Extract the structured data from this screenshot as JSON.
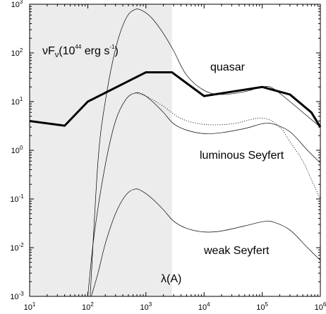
{
  "chart_data": {
    "type": "line",
    "x_scale": "log",
    "y_scale": "log",
    "xlim": [
      10,
      1000000
    ],
    "ylim": [
      0.001,
      1000
    ],
    "shaded_region_x": [
      10,
      2800
    ],
    "ylabel_annotation": {
      "nu": "ν",
      "F": "F",
      "sub": "ν",
      "rest1": "(10",
      "exp1": "44",
      "rest2": " erg s",
      "exp2": "-1",
      "rest3": ")"
    },
    "xlabel": "λ(A)",
    "x_ticks": [
      {
        "value": 10,
        "base": "10",
        "exp": "1"
      },
      {
        "value": 100,
        "base": "10",
        "exp": "2"
      },
      {
        "value": 1000,
        "base": "10",
        "exp": "3"
      },
      {
        "value": 10000,
        "base": "10",
        "exp": "4"
      },
      {
        "value": 100000,
        "base": "10",
        "exp": "5"
      },
      {
        "value": 1000000,
        "base": "10",
        "exp": "6"
      }
    ],
    "y_ticks": [
      {
        "value": 0.001,
        "base": "10",
        "exp": "-3"
      },
      {
        "value": 0.01,
        "base": "10",
        "exp": "-2"
      },
      {
        "value": 0.1,
        "base": "10",
        "exp": "-1"
      },
      {
        "value": 1,
        "base": "10",
        "exp": "0"
      },
      {
        "value": 10,
        "base": "10",
        "exp": "1"
      },
      {
        "value": 100,
        "base": "10",
        "exp": "2"
      },
      {
        "value": 1000,
        "base": "10",
        "exp": "3"
      }
    ],
    "series": [
      {
        "label": "quasar",
        "style": "thin",
        "x": [
          110,
          150,
          200,
          300,
          450,
          650,
          900,
          1300,
          2000,
          3000,
          5000,
          10000,
          20000,
          50000,
          100000,
          150000,
          300000,
          600000,
          1000000
        ],
        "y": [
          0.001,
          0.6,
          10,
          120,
          500,
          780,
          720,
          500,
          250,
          110,
          35,
          17,
          14,
          16,
          20,
          19,
          10,
          5,
          3
        ]
      },
      {
        "label": "luminous Seyfert",
        "style": "thin",
        "x": [
          100,
          130,
          200,
          300,
          450,
          650,
          900,
          1300,
          2000,
          3000,
          5000,
          10000,
          20000,
          50000,
          100000,
          150000,
          300000,
          600000,
          1000000
        ],
        "y": [
          0.001,
          0.02,
          0.5,
          4,
          11,
          15,
          14,
          10,
          6,
          3.5,
          2.6,
          2.2,
          2.3,
          2.8,
          3.5,
          3.5,
          2.4,
          1.0,
          0.55
        ]
      },
      {
        "label": "",
        "style": "dotted",
        "x": [
          650,
          1000,
          2000,
          4000,
          10000,
          30000,
          100000,
          200000,
          300000,
          500000,
          700000,
          1000000
        ],
        "y": [
          15,
          13,
          8,
          4.5,
          3.4,
          3.5,
          4.6,
          3.0,
          1.5,
          0.6,
          0.25,
          0.1
        ]
      },
      {
        "label": "weak Seyfert",
        "style": "thin",
        "x": [
          115,
          150,
          200,
          300,
          450,
          650,
          900,
          1300,
          2000,
          3000,
          5000,
          10000,
          20000,
          50000,
          100000,
          150000,
          300000,
          600000,
          1000000
        ],
        "y": [
          0.001,
          0.003,
          0.012,
          0.05,
          0.12,
          0.16,
          0.14,
          0.1,
          0.06,
          0.035,
          0.025,
          0.021,
          0.022,
          0.028,
          0.034,
          0.034,
          0.023,
          0.01,
          0.0055
        ]
      },
      {
        "label": "",
        "style": "thick",
        "x": [
          10,
          40,
          100,
          1000,
          2800,
          10000,
          100000,
          300000,
          700000,
          1000000
        ],
        "y": [
          4,
          3.2,
          10,
          40,
          40,
          13,
          20,
          14,
          6,
          3
        ]
      }
    ]
  }
}
